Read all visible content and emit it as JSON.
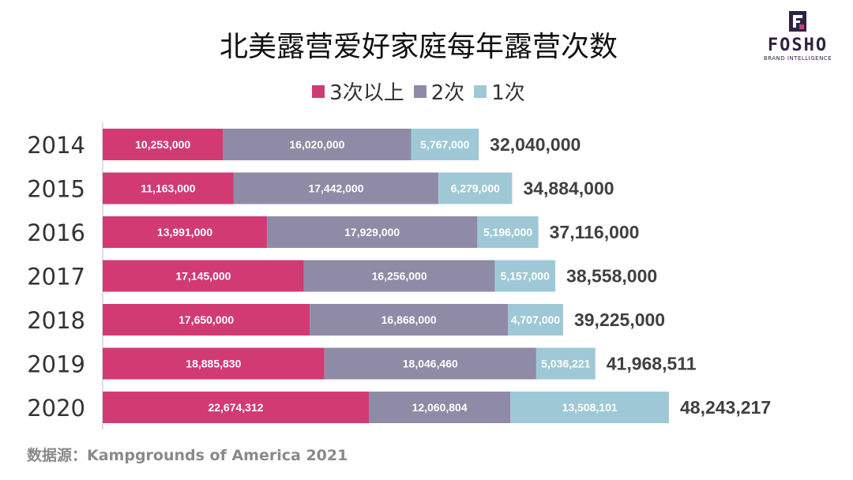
{
  "chart_data": {
    "type": "bar",
    "orientation": "horizontal",
    "stacked": true,
    "title": "北美露营爱好家庭每年露营次数",
    "categories": [
      "2014",
      "2015",
      "2016",
      "2017",
      "2018",
      "2019",
      "2020"
    ],
    "series": [
      {
        "name": "3次以上",
        "color": "#d23a74",
        "values": [
          10253000,
          11163000,
          13991000,
          17145000,
          17650000,
          18885830,
          22674312
        ],
        "labels": [
          "10,253,000",
          "11,163,000",
          "13,991,000",
          "17,145,000",
          "17,650,000",
          "18,885,830",
          "22,674,312"
        ]
      },
      {
        "name": "2次",
        "color": "#8f8ba6",
        "values": [
          16020000,
          17442000,
          17929000,
          16256000,
          16868000,
          18046460,
          12060804
        ],
        "labels": [
          "16,020,000",
          "17,442,000",
          "17,929,000",
          "16,256,000",
          "16,868,000",
          "18,046,460",
          "12,060,804"
        ]
      },
      {
        "name": "1次",
        "color": "#9fc8d6",
        "values": [
          5767000,
          6279000,
          5196000,
          5157000,
          4707000,
          5036221,
          13508101
        ],
        "labels": [
          "5,767,000",
          "6,279,000",
          "5,196,000",
          "5,157,000",
          "4,707,000",
          "5,036,221",
          "13,508,101"
        ]
      }
    ],
    "totals": [
      32040000,
      34884000,
      37116000,
      38558000,
      39225000,
      41968511,
      48243217
    ],
    "total_labels": [
      "32,040,000",
      "34,884,000",
      "37,116,000",
      "38,558,000",
      "39,225,000",
      "41,968,511",
      "48,243,217"
    ],
    "xlim": [
      0,
      48243217
    ],
    "grid": false,
    "legend_position": "top-center"
  },
  "source_note": "数据源：Kampgrounds of America 2021",
  "logo": {
    "word": "FOSHO",
    "tagline": "BRAND INTELLIGENCE"
  },
  "colors": {
    "title": "#111111",
    "axis_line": "#bfbfbf",
    "bar_label": "#ffffff",
    "total_label": "#404040",
    "year_label": "#333333",
    "source": "#8a8a8a"
  }
}
